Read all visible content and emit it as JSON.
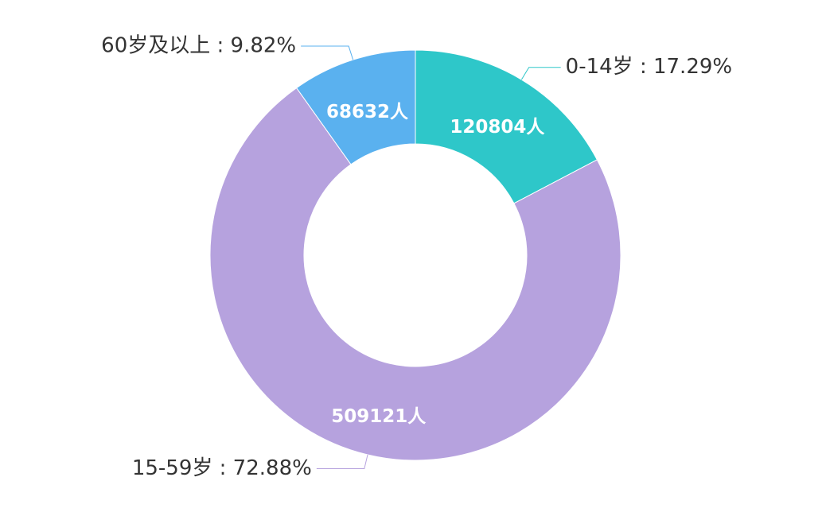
{
  "chart_data": {
    "type": "pie",
    "labels": [
      "0-14岁 : 17.29%",
      "15-59岁 : 72.88%",
      "60岁及以上 : 9.82%"
    ],
    "values": [
      120804,
      509121,
      68632
    ],
    "value_labels": [
      "120804人",
      "509121人",
      "68632人"
    ],
    "colors": [
      "#2ec7c9",
      "#b6a2de",
      "#5ab1ef"
    ]
  }
}
